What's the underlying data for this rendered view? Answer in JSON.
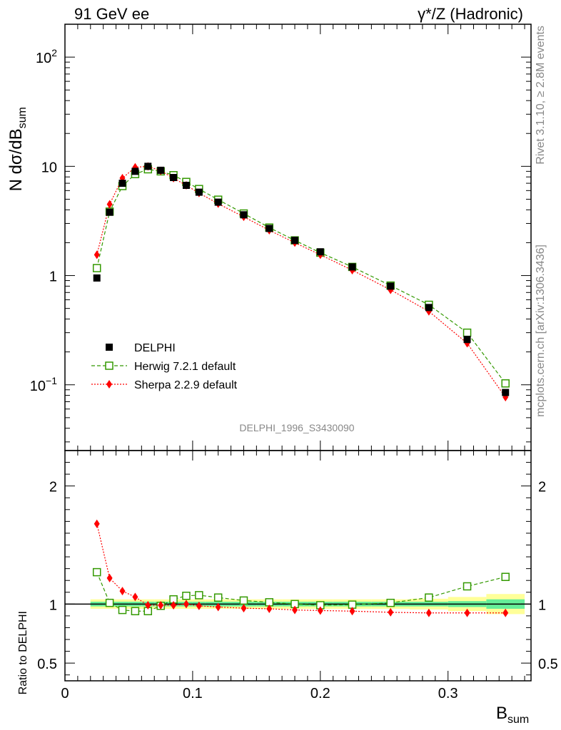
{
  "header": {
    "left_title": "91 GeV ee",
    "right_title": "γ*/Z (Hadronic)"
  },
  "side_labels": {
    "rivet": "Rivet 3.1.10, ≥ 2.8M events",
    "mcplots": "mcplots.cern.ch [arXiv:1306.3436]"
  },
  "analysis_id": "DELPHI_1996_S3430090",
  "chart_data": [
    {
      "type": "scatter",
      "panel": "main",
      "ylabel_parts": [
        "N dσ/dB",
        "sum"
      ],
      "yscale": "log",
      "ylim": [
        0.025,
        200
      ],
      "xlim": [
        0,
        0.365
      ],
      "ytick_labels": [
        {
          "value": 0.1,
          "base": "10",
          "exp": "−1"
        },
        {
          "value": 1,
          "base": "1",
          "exp": ""
        },
        {
          "value": 10,
          "base": "10",
          "exp": ""
        },
        {
          "value": 100,
          "base": "10",
          "exp": "2"
        }
      ],
      "legend_position": "lower-left",
      "x": [
        0.025,
        0.035,
        0.045,
        0.055,
        0.065,
        0.075,
        0.085,
        0.095,
        0.105,
        0.12,
        0.14,
        0.16,
        0.18,
        0.2,
        0.225,
        0.255,
        0.285,
        0.315,
        0.345
      ],
      "series": [
        {
          "name": "DELPHI",
          "marker": "filled-square",
          "color": "#000000",
          "values": [
            0.95,
            3.8,
            7.0,
            9.0,
            10.0,
            9.2,
            7.9,
            6.7,
            5.8,
            4.7,
            3.6,
            2.7,
            2.1,
            1.65,
            1.2,
            0.8,
            0.51,
            0.26,
            0.085
          ]
        },
        {
          "name": "Herwig 7.2.1 default",
          "marker": "open-square",
          "color": "#339900",
          "line": "dashed",
          "values": [
            1.17,
            3.85,
            6.6,
            8.5,
            9.4,
            9.0,
            8.3,
            7.2,
            6.2,
            4.95,
            3.7,
            2.75,
            2.1,
            1.62,
            1.2,
            0.81,
            0.54,
            0.3,
            0.103
          ]
        },
        {
          "name": "Sherpa 2.2.9 default",
          "marker": "filled-diamond",
          "color": "#ff0000",
          "line": "dotted",
          "values": [
            1.55,
            4.5,
            7.8,
            9.8,
            10.0,
            9.1,
            7.8,
            6.7,
            5.7,
            4.55,
            3.45,
            2.6,
            2.0,
            1.55,
            1.12,
            0.74,
            0.47,
            0.24,
            0.077
          ]
        }
      ]
    },
    {
      "type": "scatter",
      "panel": "ratio",
      "ylabel": "Ratio to DELPHI",
      "xlabel_parts": [
        "B",
        "sum"
      ],
      "ylim": [
        0.35,
        2.3
      ],
      "xlim": [
        0,
        0.365
      ],
      "yticks": [
        0.5,
        1,
        2
      ],
      "ytick_labels": [
        "0.5",
        "1",
        "2"
      ],
      "xticks": [
        0,
        0.1,
        0.2,
        0.3
      ],
      "xtick_labels": [
        "0",
        "0.1",
        "0.2",
        "0.3"
      ],
      "x": [
        0.025,
        0.035,
        0.045,
        0.055,
        0.065,
        0.075,
        0.085,
        0.095,
        0.105,
        0.12,
        0.14,
        0.16,
        0.18,
        0.2,
        0.225,
        0.255,
        0.285,
        0.315,
        0.345
      ],
      "bin_edges": [
        0.02,
        0.03,
        0.04,
        0.05,
        0.06,
        0.07,
        0.08,
        0.09,
        0.1,
        0.11,
        0.13,
        0.15,
        0.17,
        0.19,
        0.21,
        0.24,
        0.27,
        0.3,
        0.33,
        0.36
      ],
      "band_inner": [
        0.02,
        0.02,
        0.02,
        0.02,
        0.02,
        0.02,
        0.02,
        0.02,
        0.02,
        0.02,
        0.02,
        0.02,
        0.02,
        0.02,
        0.02,
        0.02,
        0.02,
        0.025,
        0.04
      ],
      "band_outer": [
        0.04,
        0.04,
        0.04,
        0.04,
        0.04,
        0.04,
        0.04,
        0.04,
        0.04,
        0.04,
        0.04,
        0.04,
        0.04,
        0.04,
        0.04,
        0.04,
        0.045,
        0.06,
        0.085
      ],
      "series": [
        {
          "name": "Herwig 7.2.1 default",
          "marker": "open-square",
          "color": "#339900",
          "line": "dashed",
          "values": [
            1.27,
            1.01,
            0.95,
            0.94,
            0.94,
            0.985,
            1.04,
            1.07,
            1.075,
            1.055,
            1.03,
            1.015,
            1.0,
            0.99,
            0.995,
            1.01,
            1.055,
            1.15,
            1.23
          ]
        },
        {
          "name": "Sherpa 2.2.9 default",
          "marker": "filled-diamond",
          "color": "#ff0000",
          "line": "dotted",
          "values": [
            1.68,
            1.22,
            1.11,
            1.06,
            0.99,
            0.99,
            0.99,
            1.0,
            0.985,
            0.975,
            0.965,
            0.96,
            0.95,
            0.945,
            0.94,
            0.93,
            0.925,
            0.925,
            0.925
          ]
        }
      ]
    }
  ]
}
